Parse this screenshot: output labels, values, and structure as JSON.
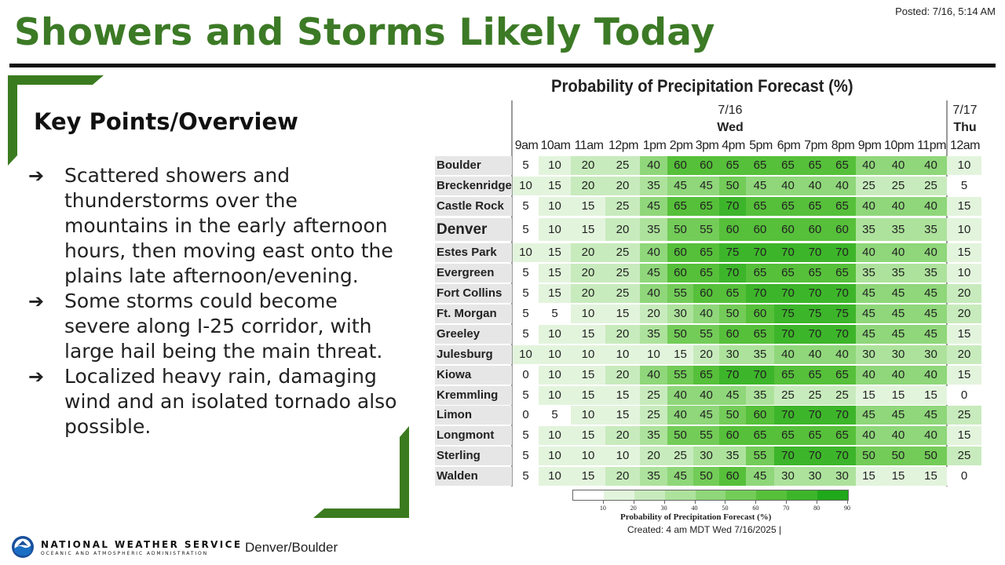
{
  "posted": "Posted: 7/16, 5:14 AM",
  "title": "Showers and Storms Likely Today",
  "key_points": {
    "heading": "Key Points/Overview",
    "bullets": [
      "Scattered showers and thunderstorms over the mountains in the early afternoon hours, then moving east onto the plains late afternoon/evening.",
      "Some storms could become severe along I-25 corridor, with large hail being the main threat.",
      "Localized heavy rain, damaging wind and an isolated tornado also possible."
    ],
    "bullet_icon": "right-arrow-icon"
  },
  "chart_data": {
    "type": "table",
    "title": "Probability of Precipitation Forecast (%)",
    "days": [
      {
        "date": "7/16",
        "day": "Wed"
      },
      {
        "date": "7/17",
        "day": "Thu"
      }
    ],
    "hours": [
      "9am",
      "10am",
      "11am",
      "12pm",
      "1pm",
      "2pm",
      "3pm",
      "4pm",
      "5pm",
      "6pm",
      "7pm",
      "8pm",
      "9pm",
      "10pm",
      "11pm",
      "12am"
    ],
    "locations": [
      {
        "name": "Boulder",
        "values": [
          5,
          10,
          20,
          25,
          40,
          60,
          60,
          65,
          65,
          65,
          65,
          65,
          40,
          40,
          40,
          10
        ]
      },
      {
        "name": "Breckenridge",
        "values": [
          10,
          15,
          20,
          20,
          35,
          45,
          45,
          50,
          45,
          40,
          40,
          40,
          25,
          25,
          25,
          5
        ]
      },
      {
        "name": "Castle Rock",
        "values": [
          5,
          10,
          15,
          25,
          45,
          65,
          65,
          70,
          65,
          65,
          65,
          65,
          40,
          40,
          40,
          15
        ]
      },
      {
        "name": "Denver",
        "values": [
          5,
          10,
          15,
          20,
          35,
          50,
          55,
          60,
          60,
          60,
          60,
          60,
          35,
          35,
          35,
          10
        ]
      },
      {
        "name": "Estes Park",
        "values": [
          10,
          15,
          20,
          25,
          40,
          60,
          65,
          75,
          70,
          70,
          70,
          70,
          40,
          40,
          40,
          15
        ]
      },
      {
        "name": "Evergreen",
        "values": [
          5,
          15,
          20,
          25,
          45,
          60,
          65,
          70,
          65,
          65,
          65,
          65,
          35,
          35,
          35,
          10
        ]
      },
      {
        "name": "Fort Collins",
        "values": [
          5,
          15,
          20,
          25,
          40,
          55,
          60,
          65,
          70,
          70,
          70,
          70,
          45,
          45,
          45,
          20
        ]
      },
      {
        "name": "Ft. Morgan",
        "values": [
          5,
          5,
          10,
          15,
          20,
          30,
          40,
          50,
          60,
          75,
          75,
          75,
          45,
          45,
          45,
          20
        ]
      },
      {
        "name": "Greeley",
        "values": [
          5,
          10,
          15,
          20,
          35,
          50,
          55,
          60,
          65,
          70,
          70,
          70,
          45,
          45,
          45,
          15
        ]
      },
      {
        "name": "Julesburg",
        "values": [
          10,
          10,
          10,
          10,
          10,
          15,
          20,
          30,
          35,
          40,
          40,
          40,
          30,
          30,
          30,
          20
        ]
      },
      {
        "name": "Kiowa",
        "values": [
          0,
          10,
          15,
          20,
          40,
          55,
          65,
          70,
          70,
          65,
          65,
          65,
          40,
          40,
          40,
          15
        ]
      },
      {
        "name": "Kremmling",
        "values": [
          5,
          10,
          15,
          15,
          25,
          40,
          40,
          45,
          35,
          25,
          25,
          25,
          15,
          15,
          15,
          0
        ]
      },
      {
        "name": "Limon",
        "values": [
          0,
          5,
          10,
          15,
          25,
          40,
          45,
          50,
          60,
          70,
          70,
          70,
          45,
          45,
          45,
          25
        ]
      },
      {
        "name": "Longmont",
        "values": [
          5,
          10,
          15,
          20,
          35,
          50,
          55,
          60,
          65,
          65,
          65,
          65,
          40,
          40,
          40,
          15
        ]
      },
      {
        "name": "Sterling",
        "values": [
          5,
          10,
          10,
          10,
          20,
          25,
          30,
          35,
          55,
          70,
          70,
          70,
          50,
          50,
          50,
          25
        ]
      },
      {
        "name": "Walden",
        "values": [
          5,
          10,
          15,
          20,
          35,
          45,
          50,
          60,
          45,
          30,
          30,
          30,
          15,
          15,
          15,
          0
        ]
      }
    ],
    "colorbar": {
      "ticks": [
        10,
        20,
        30,
        40,
        50,
        60,
        70,
        80,
        90
      ],
      "title": "Probability of Precipitation Forecast (%)",
      "colors": [
        "#ffffff",
        "#e3f4dd",
        "#c8ebbd",
        "#ade29c",
        "#8fd77a",
        "#73cc58",
        "#56c03a",
        "#3db52a",
        "#1fa81a"
      ]
    },
    "created": "Created: 4 am MDT Wed 7/16/2025 |"
  },
  "footer": {
    "agency": "NATIONAL WEATHER SERVICE",
    "agency_sub": "OCEANIC AND ATMOSPHERIC ADMINISTRATION",
    "office": "Denver/Boulder",
    "logo_icon": "noaa-logo-icon"
  },
  "colors": {
    "title_green": "#3c7a26",
    "frame_green": "#3b7b1f"
  }
}
